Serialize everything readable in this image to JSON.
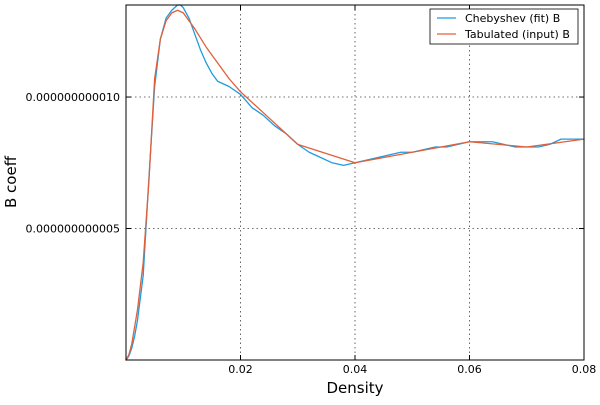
{
  "chart_data": {
    "type": "line",
    "xlabel": "Density",
    "ylabel": "B coeff",
    "xlim": [
      0.0,
      0.08
    ],
    "ylim": [
      0.0,
      1.35e-11
    ],
    "xticks": [
      {
        "value": 0.02,
        "label": "0.02"
      },
      {
        "value": 0.04,
        "label": "0.04"
      },
      {
        "value": 0.06,
        "label": "0.06"
      },
      {
        "value": 0.08,
        "label": "0.08"
      }
    ],
    "yticks": [
      {
        "value": 5e-12,
        "label": "0.000000000005"
      },
      {
        "value": 1e-11,
        "label": "0.000000000010"
      }
    ],
    "grid": true,
    "legend_position": "top-right",
    "series": [
      {
        "name": "Chebyshev (fit) B",
        "color": "#1f9be0",
        "x": [
          0.0,
          0.0005,
          0.001,
          0.0015,
          0.002,
          0.003,
          0.004,
          0.005,
          0.006,
          0.007,
          0.008,
          0.009,
          0.0095,
          0.01,
          0.011,
          0.012,
          0.013,
          0.014,
          0.015,
          0.016,
          0.018,
          0.02,
          0.022,
          0.024,
          0.026,
          0.028,
          0.03,
          0.032,
          0.034,
          0.036,
          0.038,
          0.04,
          0.042,
          0.044,
          0.046,
          0.048,
          0.05,
          0.052,
          0.054,
          0.056,
          0.058,
          0.06,
          0.062,
          0.064,
          0.066,
          0.068,
          0.07,
          0.072,
          0.074,
          0.075,
          0.076,
          0.078,
          0.08
        ],
        "y": [
          0.0,
          1.5e-13,
          4.5e-13,
          9e-13,
          1.5e-12,
          3.2e-12,
          6.9e-12,
          1.04e-11,
          1.22e-11,
          1.3e-11,
          1.33e-11,
          1.35e-11,
          1.35e-11,
          1.34e-11,
          1.3e-11,
          1.24e-11,
          1.18e-11,
          1.13e-11,
          1.09e-11,
          1.06e-11,
          1.04e-11,
          1.01e-11,
          9.6e-12,
          9.3e-12,
          8.9e-12,
          8.6e-12,
          8.2e-12,
          7.9e-12,
          7.7e-12,
          7.5e-12,
          7.4e-12,
          7.5e-12,
          7.6e-12,
          7.7e-12,
          7.8e-12,
          7.9e-12,
          7.9e-12,
          8e-12,
          8.1e-12,
          8.1e-12,
          8.2e-12,
          8.3e-12,
          8.3e-12,
          8.3e-12,
          8.2e-12,
          8.1e-12,
          8.1e-12,
          8.1e-12,
          8.2e-12,
          8.3e-12,
          8.4e-12,
          8.4e-12,
          8.4e-12
        ]
      },
      {
        "name": "Tabulated (input) B",
        "color": "#e0603a",
        "x": [
          0.0,
          0.0005,
          0.001,
          0.002,
          0.003,
          0.004,
          0.005,
          0.006,
          0.007,
          0.008,
          0.009,
          0.01,
          0.012,
          0.014,
          0.016,
          0.018,
          0.02,
          0.025,
          0.03,
          0.04,
          0.05,
          0.06,
          0.07,
          0.08
        ],
        "y": [
          0.0,
          2e-13,
          6e-13,
          1.9e-12,
          3.7e-12,
          6.8e-12,
          1.07e-11,
          1.22e-11,
          1.29e-11,
          1.32e-11,
          1.33e-11,
          1.32e-11,
          1.26e-11,
          1.19e-11,
          1.13e-11,
          1.07e-11,
          1.02e-11,
          9.2e-12,
          8.2e-12,
          7.5e-12,
          7.9e-12,
          8.3e-12,
          8.1e-12,
          8.4e-12
        ]
      }
    ]
  }
}
